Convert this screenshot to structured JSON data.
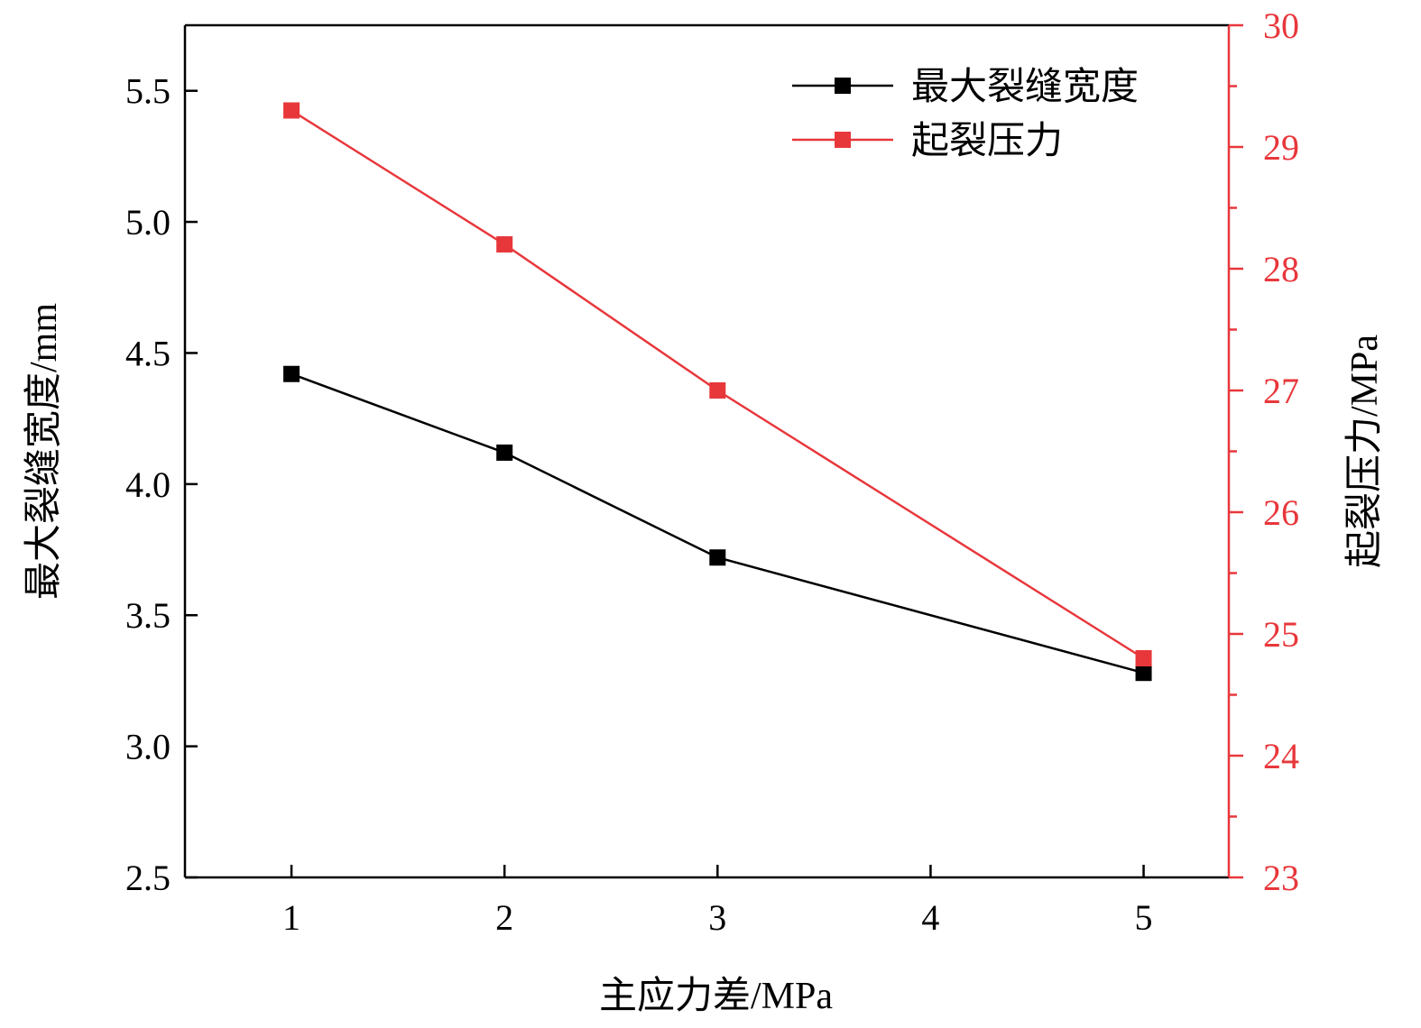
{
  "chart_data": {
    "type": "line",
    "x": [
      1,
      2,
      3,
      5
    ],
    "x_ticks": [
      "1",
      "2",
      "3",
      "4",
      "5"
    ],
    "xlabel": "主应力差/MPa",
    "xlim": [
      0.5,
      5.4
    ],
    "y_left": {
      "label": "最大裂缝宽度/mm",
      "lim": [
        2.5,
        5.75
      ],
      "ticks": [
        "2.5",
        "3.0",
        "3.5",
        "4.0",
        "4.5",
        "5.0",
        "5.5"
      ]
    },
    "y_right": {
      "label": "起裂压力/MPa",
      "lim": [
        23,
        30
      ],
      "ticks": [
        "23",
        "24",
        "25",
        "26",
        "27",
        "28",
        "29",
        "30"
      ]
    },
    "series": [
      {
        "name": "最大裂缝宽度",
        "axis": "left",
        "color": "#000000",
        "marker": "square",
        "values": [
          4.42,
          4.12,
          3.72,
          3.28
        ]
      },
      {
        "name": "起裂压力",
        "axis": "right",
        "color": "#e8373b",
        "marker": "square",
        "values": [
          29.3,
          28.2,
          27.0,
          24.8
        ]
      }
    ],
    "legend": "top-right",
    "grid": false
  }
}
